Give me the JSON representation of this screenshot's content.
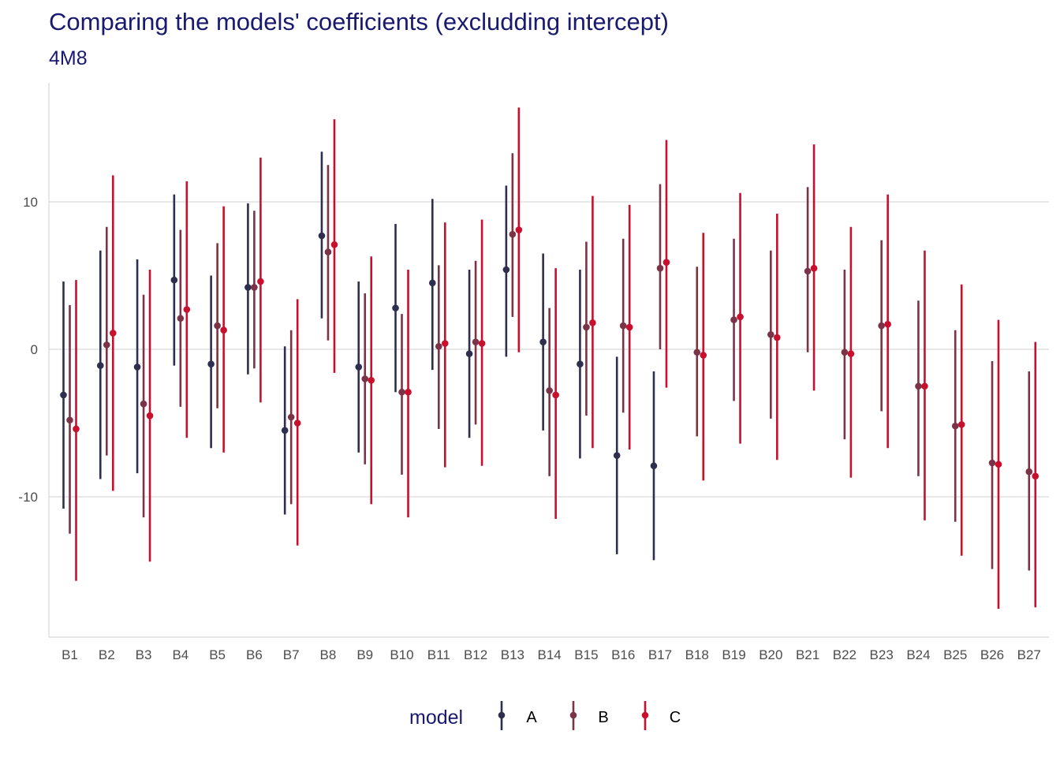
{
  "title": "Comparing the models' coefficients (excludding intercept)",
  "subtitle": "4M8",
  "chart_data": {
    "type": "pointrange",
    "categories": [
      "B1",
      "B2",
      "B3",
      "B4",
      "B5",
      "B6",
      "B7",
      "B8",
      "B9",
      "B10",
      "B11",
      "B12",
      "B13",
      "B14",
      "B15",
      "B16",
      "B17",
      "B18",
      "B19",
      "B20",
      "B21",
      "B22",
      "B23",
      "B24",
      "B25",
      "B26",
      "B27"
    ],
    "ylim": [
      -19.5,
      18
    ],
    "yticks": [
      -10,
      0,
      10
    ],
    "ytick_labels": [
      "-10",
      "0",
      "10"
    ],
    "grid": "horizontal major",
    "legend": {
      "title": "model",
      "position": "bottom"
    },
    "series": [
      {
        "name": "A",
        "color": "#2e2e4e",
        "estimate": [
          -3.1,
          -1.1,
          -1.2,
          4.7,
          -1.0,
          4.2,
          -5.5,
          7.7,
          -1.2,
          2.8,
          4.5,
          -0.3,
          5.4,
          0.5,
          -1.0,
          -7.2,
          -7.9,
          null,
          null,
          null,
          null,
          null,
          null,
          null,
          null,
          null,
          null
        ],
        "lower": [
          -10.8,
          -8.8,
          -8.4,
          -1.1,
          -6.7,
          -1.7,
          -11.2,
          2.1,
          -7.0,
          -2.9,
          -1.4,
          -6.0,
          -0.5,
          -5.5,
          -7.4,
          -13.9,
          -14.3,
          null,
          null,
          null,
          null,
          null,
          null,
          null,
          null,
          null,
          null
        ],
        "upper": [
          4.6,
          6.7,
          6.1,
          10.5,
          5.0,
          9.9,
          0.2,
          13.4,
          4.6,
          8.5,
          10.2,
          5.4,
          11.1,
          6.5,
          5.4,
          -0.5,
          -1.5,
          null,
          null,
          null,
          null,
          null,
          null,
          null,
          null,
          null,
          null
        ]
      },
      {
        "name": "B",
        "color": "#7b3347",
        "estimate": [
          -4.8,
          0.3,
          -3.7,
          2.1,
          1.6,
          4.2,
          -4.6,
          6.6,
          -2.0,
          -2.9,
          0.2,
          0.5,
          7.8,
          -2.8,
          1.5,
          1.6,
          5.5,
          -0.2,
          2.0,
          1.0,
          5.3,
          -0.2,
          1.6,
          -2.5,
          -5.2,
          -7.7,
          -8.3
        ],
        "lower": [
          -12.5,
          -7.2,
          -11.4,
          -3.9,
          -4.0,
          -1.3,
          -10.5,
          0.6,
          -7.8,
          -8.5,
          -5.4,
          -5.1,
          2.2,
          -8.6,
          -4.5,
          -4.3,
          0.0,
          -5.9,
          -3.5,
          -4.7,
          -0.2,
          -6.1,
          -4.2,
          -8.6,
          -11.7,
          -14.9,
          -15.0
        ],
        "upper": [
          3.0,
          8.3,
          3.7,
          8.1,
          7.2,
          9.4,
          1.3,
          12.5,
          3.8,
          2.4,
          5.7,
          6.0,
          13.3,
          2.8,
          7.3,
          7.5,
          11.2,
          5.6,
          7.5,
          6.7,
          11.0,
          5.4,
          7.4,
          3.3,
          1.3,
          -0.8,
          -1.5
        ]
      },
      {
        "name": "C",
        "color": "#c8102e",
        "estimate": [
          -5.4,
          1.1,
          -4.5,
          2.7,
          1.3,
          4.6,
          -5.0,
          7.1,
          -2.1,
          -2.9,
          0.4,
          0.4,
          8.1,
          -3.1,
          1.8,
          1.5,
          5.9,
          -0.4,
          2.2,
          0.8,
          5.5,
          -0.3,
          1.7,
          -2.5,
          -5.1,
          -7.8,
          -8.6
        ],
        "lower": [
          -15.7,
          -9.6,
          -14.4,
          -6.0,
          -7.0,
          -3.6,
          -13.3,
          -1.6,
          -10.5,
          -11.4,
          -8.0,
          -7.9,
          -0.2,
          -11.5,
          -6.7,
          -6.8,
          -2.6,
          -8.9,
          -6.4,
          -7.5,
          -2.8,
          -8.7,
          -6.7,
          -11.6,
          -14.0,
          -17.6,
          -17.5
        ],
        "upper": [
          4.7,
          11.8,
          5.4,
          11.4,
          9.7,
          13.0,
          3.4,
          15.6,
          6.3,
          5.4,
          8.6,
          8.8,
          16.4,
          5.5,
          10.4,
          9.8,
          14.2,
          7.9,
          10.6,
          9.2,
          13.9,
          8.3,
          10.5,
          6.7,
          4.4,
          2.0,
          0.5
        ]
      }
    ]
  }
}
